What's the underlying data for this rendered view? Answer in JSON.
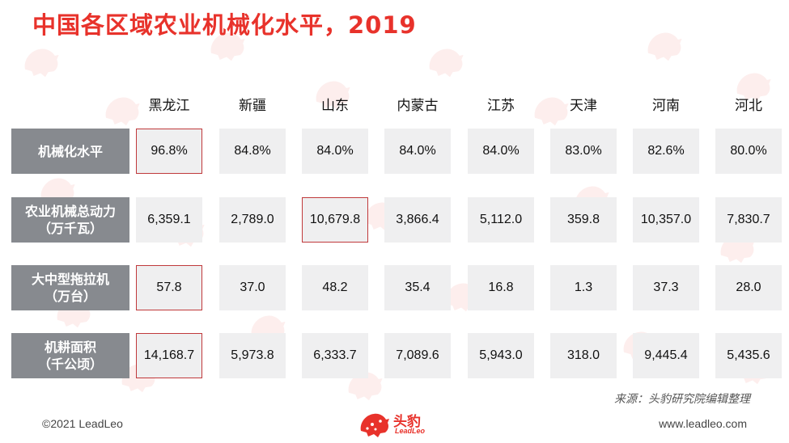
{
  "title": "中国各区域农业机械化水平，2019",
  "columns": [
    "黑龙江",
    "新疆",
    "山东",
    "内蒙古",
    "江苏",
    "天津",
    "河南",
    "河北"
  ],
  "rows": [
    {
      "label_line1": "机械化水平",
      "label_line2": "",
      "values": [
        "96.8%",
        "84.8%",
        "84.0%",
        "84.0%",
        "84.0%",
        "83.0%",
        "82.6%",
        "80.0%"
      ],
      "highlight_index": 0
    },
    {
      "label_line1": "农业机械总动力",
      "label_line2": "（万千瓦）",
      "values": [
        "6,359.1",
        "2,789.0",
        "10,679.8",
        "3,866.4",
        "5,112.0",
        "359.8",
        "10,357.0",
        "7,830.7"
      ],
      "highlight_index": 2
    },
    {
      "label_line1": "大中型拖拉机",
      "label_line2": "（万台）",
      "values": [
        "57.8",
        "37.0",
        "48.2",
        "35.4",
        "16.8",
        "1.3",
        "37.3",
        "28.0"
      ],
      "highlight_index": 0
    },
    {
      "label_line1": "机耕面积",
      "label_line2": "（千公顷）",
      "values": [
        "14,168.7",
        "5,973.8",
        "6,333.7",
        "7,089.6",
        "5,943.0",
        "318.0",
        "9,445.4",
        "5,435.6"
      ],
      "highlight_index": 0
    }
  ],
  "source": "来源：头豹研究院编辑整理",
  "footer_left": "©2021 LeadLeo",
  "footer_right": "www.leadleo.com",
  "logo": {
    "name": "头豹",
    "sub": "LeadLeo",
    "color": "#e8322b",
    "icon": "leopard-logo-icon"
  },
  "colors": {
    "title": "#e8322b",
    "row_label_bg": "#878a8f",
    "cell_bg": "#efeff0",
    "highlight_border": "#c0393b"
  }
}
